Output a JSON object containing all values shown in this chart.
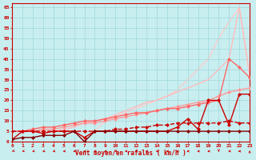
{
  "xlabel": "Vent moyen/en rafales ( km/h )",
  "bg_color": "#c8eef0",
  "grid_color": "#a0d8dc",
  "x_ticks": [
    0,
    1,
    2,
    3,
    4,
    5,
    6,
    7,
    8,
    9,
    10,
    11,
    12,
    13,
    14,
    15,
    16,
    17,
    18,
    19,
    20,
    21,
    22,
    23
  ],
  "y_ticks": [
    0,
    5,
    10,
    15,
    20,
    25,
    30,
    35,
    40,
    45,
    50,
    55,
    60,
    65
  ],
  "xlim": [
    0,
    23
  ],
  "ylim": [
    0,
    67
  ],
  "lines": [
    {
      "x": [
        0,
        1,
        2,
        3,
        4,
        5,
        6,
        7,
        8,
        9,
        10,
        11,
        12,
        13,
        14,
        15,
        16,
        17,
        18,
        19,
        20,
        21,
        22,
        23
      ],
      "y": [
        5,
        5,
        5,
        5,
        5,
        5,
        5,
        5,
        5,
        10,
        12,
        14,
        16,
        18,
        20,
        22,
        25,
        30,
        35,
        40,
        50,
        58,
        65,
        32
      ],
      "color": "#ffcccc",
      "lw": 1.0,
      "marker": null,
      "ms": 0,
      "zorder": 1
    },
    {
      "x": [
        0,
        1,
        2,
        3,
        4,
        5,
        6,
        7,
        8,
        9,
        10,
        11,
        12,
        13,
        14,
        15,
        16,
        17,
        18,
        19,
        20,
        21,
        22,
        23
      ],
      "y": [
        5,
        5,
        5,
        5,
        5,
        6,
        7,
        9,
        10,
        11,
        13,
        15,
        17,
        19,
        20,
        22,
        24,
        26,
        28,
        30,
        35,
        40,
        65,
        32
      ],
      "color": "#ffbbbb",
      "lw": 1.0,
      "marker": null,
      "ms": 0,
      "zorder": 2
    },
    {
      "x": [
        0,
        1,
        2,
        3,
        4,
        5,
        6,
        7,
        8,
        9,
        10,
        11,
        12,
        13,
        14,
        15,
        16,
        17,
        18,
        19,
        20,
        21,
        22,
        23
      ],
      "y": [
        5,
        5,
        5,
        6,
        6,
        7,
        8,
        9,
        9,
        10,
        11,
        12,
        13,
        14,
        15,
        16,
        17,
        18,
        19,
        20,
        22,
        24,
        25,
        26
      ],
      "color": "#ff9999",
      "lw": 1.0,
      "marker": "D",
      "ms": 2.0,
      "zorder": 3
    },
    {
      "x": [
        0,
        1,
        2,
        3,
        4,
        5,
        6,
        7,
        8,
        9,
        10,
        11,
        12,
        13,
        14,
        15,
        16,
        17,
        18,
        19,
        20,
        21,
        22,
        23
      ],
      "y": [
        5,
        5,
        6,
        7,
        7,
        8,
        9,
        10,
        10,
        11,
        12,
        13,
        14,
        14,
        15,
        16,
        16,
        17,
        18,
        19,
        20,
        40,
        36,
        31
      ],
      "color": "#ff6666",
      "lw": 1.0,
      "marker": "D",
      "ms": 2.0,
      "zorder": 4
    },
    {
      "x": [
        0,
        1,
        2,
        3,
        4,
        5,
        6,
        7,
        8,
        9,
        10,
        11,
        12,
        13,
        14,
        15,
        16,
        17,
        18,
        19,
        20,
        21,
        22,
        23
      ],
      "y": [
        5,
        5,
        5,
        5,
        5,
        5,
        5,
        5,
        5,
        5,
        6,
        6,
        7,
        7,
        8,
        8,
        9,
        9,
        9,
        9,
        9,
        10,
        9,
        9
      ],
      "color": "#cc0000",
      "lw": 1.0,
      "marker": "D",
      "ms": 2.0,
      "dashed": true,
      "zorder": 5
    },
    {
      "x": [
        0,
        1,
        2,
        3,
        4,
        5,
        6,
        7,
        8,
        9,
        10,
        11,
        12,
        13,
        14,
        15,
        16,
        17,
        18,
        19,
        20,
        21,
        22,
        23
      ],
      "y": [
        1,
        5,
        5,
        4,
        5,
        5,
        5,
        2,
        5,
        5,
        5,
        5,
        5,
        5,
        5,
        5,
        7,
        11,
        6,
        20,
        20,
        8,
        23,
        23
      ],
      "color": "#cc0000",
      "lw": 1.0,
      "marker": "D",
      "ms": 2.0,
      "dashed": false,
      "zorder": 6
    },
    {
      "x": [
        0,
        1,
        2,
        3,
        4,
        5,
        6,
        7,
        8,
        9,
        10,
        11,
        12,
        13,
        14,
        15,
        16,
        17,
        18,
        19,
        20,
        21,
        22,
        23
      ],
      "y": [
        1,
        2,
        2,
        3,
        3,
        3,
        5,
        0,
        5,
        5,
        5,
        5,
        5,
        5,
        5,
        5,
        5,
        5,
        5,
        5,
        5,
        5,
        5,
        5
      ],
      "color": "#880000",
      "lw": 1.0,
      "marker": "D",
      "ms": 2.0,
      "dashed": false,
      "zorder": 7
    }
  ],
  "wind_dir": [
    -130,
    -140,
    -145,
    -145,
    -150,
    -150,
    -155,
    -155,
    -160,
    -155,
    -150,
    -155,
    -160,
    -160,
    -155,
    -155,
    -160,
    -160,
    -155,
    -155,
    -90,
    -150,
    -165,
    90
  ],
  "xlabel_color": "#cc0000",
  "tick_color": "#cc0000",
  "axis_color": "#cc0000",
  "spine_color": "#cc0000"
}
